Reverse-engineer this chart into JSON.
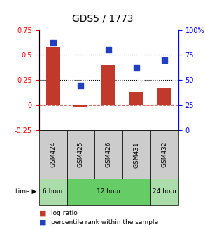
{
  "title": "GDS5 / 1773",
  "samples": [
    "GSM424",
    "GSM425",
    "GSM426",
    "GSM431",
    "GSM432"
  ],
  "log_ratio": [
    0.58,
    -0.02,
    0.4,
    0.13,
    0.18
  ],
  "percentile_rank": [
    87,
    45,
    80,
    62,
    70
  ],
  "bar_color": "#c0392b",
  "square_color": "#2040c0",
  "ylim_left": [
    -0.25,
    0.75
  ],
  "ylim_right": [
    0,
    100
  ],
  "yticks_left": [
    -0.25,
    0,
    0.25,
    0.5,
    0.75
  ],
  "yticks_right": [
    0,
    25,
    50,
    75,
    100
  ],
  "ytick_labels_left": [
    "-0.25",
    "0",
    "0.25",
    "0.5",
    "0.75"
  ],
  "ytick_labels_right": [
    "0",
    "25",
    "50",
    "75",
    "100%"
  ],
  "dotted_lines": [
    0.25,
    0.5
  ],
  "zero_line": 0.0,
  "time_groups": [
    {
      "label": "6 hour",
      "start": 0,
      "end": 1,
      "color": "#aaddaa"
    },
    {
      "label": "12 hour",
      "start": 1,
      "end": 4,
      "color": "#66cc66"
    },
    {
      "label": "24 hour",
      "start": 4,
      "end": 5,
      "color": "#aaddaa"
    }
  ],
  "sample_box_color": "#cccccc",
  "legend_bar_label": "log ratio",
  "legend_sq_label": "percentile rank within the sample",
  "time_arrow_label": "time"
}
